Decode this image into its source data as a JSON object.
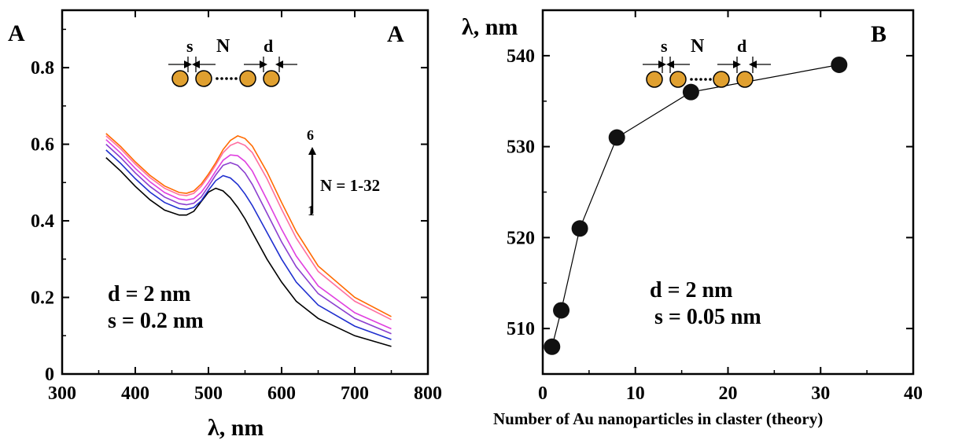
{
  "chart_data": [
    {
      "type": "line",
      "panel_label": "A",
      "ylabel": "A",
      "xlabel": "λ, nm",
      "xlim": [
        300,
        800
      ],
      "ylim": [
        0,
        0.95
      ],
      "x_ticks": [
        "300",
        "400",
        "500",
        "600",
        "700",
        "800"
      ],
      "y_ticks": [
        "0",
        "0.2",
        "0.4",
        "0.6",
        "0.8"
      ],
      "grid": false,
      "annotations": {
        "d": "d = 2 nm",
        "s": "s = 0.2 nm",
        "arrow_top": "6",
        "arrow_bottom": "1",
        "arrow_label": "N = 1-32",
        "schematic_s": "s",
        "schematic_n": "N",
        "schematic_d": "d"
      },
      "x": [
        360,
        380,
        400,
        420,
        440,
        460,
        470,
        480,
        490,
        500,
        510,
        520,
        530,
        540,
        550,
        560,
        580,
        600,
        620,
        650,
        700,
        750
      ],
      "series": [
        {
          "color": "#000000",
          "values": [
            0.565,
            0.53,
            0.49,
            0.455,
            0.428,
            0.415,
            0.415,
            0.425,
            0.45,
            0.475,
            0.485,
            0.478,
            0.46,
            0.435,
            0.405,
            0.37,
            0.3,
            0.24,
            0.19,
            0.145,
            0.1,
            0.072
          ]
        },
        {
          "color": "#1f2fcf",
          "values": [
            0.585,
            0.55,
            0.51,
            0.475,
            0.448,
            0.432,
            0.43,
            0.435,
            0.452,
            0.48,
            0.505,
            0.518,
            0.512,
            0.495,
            0.47,
            0.44,
            0.37,
            0.3,
            0.24,
            0.18,
            0.125,
            0.09
          ]
        },
        {
          "color": "#8b3fcf",
          "values": [
            0.6,
            0.565,
            0.525,
            0.49,
            0.462,
            0.445,
            0.442,
            0.446,
            0.462,
            0.49,
            0.52,
            0.545,
            0.552,
            0.545,
            0.525,
            0.495,
            0.42,
            0.345,
            0.28,
            0.21,
            0.145,
            0.105
          ]
        },
        {
          "color": "#e040e0",
          "values": [
            0.612,
            0.577,
            0.537,
            0.502,
            0.474,
            0.457,
            0.454,
            0.458,
            0.474,
            0.5,
            0.53,
            0.558,
            0.572,
            0.57,
            0.555,
            0.53,
            0.455,
            0.378,
            0.308,
            0.23,
            0.16,
            0.118
          ]
        },
        {
          "color": "#ff6fa0",
          "values": [
            0.622,
            0.588,
            0.548,
            0.513,
            0.485,
            0.468,
            0.466,
            0.472,
            0.49,
            0.516,
            0.546,
            0.578,
            0.597,
            0.605,
            0.597,
            0.578,
            0.51,
            0.43,
            0.355,
            0.268,
            0.19,
            0.142
          ]
        },
        {
          "color": "#ff6a00",
          "values": [
            0.628,
            0.594,
            0.554,
            0.519,
            0.491,
            0.474,
            0.472,
            0.478,
            0.496,
            0.522,
            0.552,
            0.586,
            0.61,
            0.622,
            0.615,
            0.595,
            0.528,
            0.448,
            0.372,
            0.282,
            0.2,
            0.15
          ]
        }
      ]
    },
    {
      "type": "scatter",
      "panel_label": "B",
      "ylabel": "λ, nm",
      "xlabel": "Number of Au nanoparticles in claster (theory)",
      "xlim": [
        0,
        40
      ],
      "ylim": [
        505,
        545
      ],
      "x_ticks": [
        "0",
        "10",
        "20",
        "30",
        "40"
      ],
      "y_ticks": [
        "510",
        "520",
        "530",
        "540"
      ],
      "grid": false,
      "annotations": {
        "d": "d = 2 nm",
        "s": "s = 0.05 nm",
        "schematic_s": "s",
        "schematic_n": "N",
        "schematic_d": "d"
      },
      "x": [
        1,
        2,
        4,
        8,
        16,
        32
      ],
      "values": [
        508,
        512,
        521,
        531,
        536,
        539
      ]
    }
  ]
}
